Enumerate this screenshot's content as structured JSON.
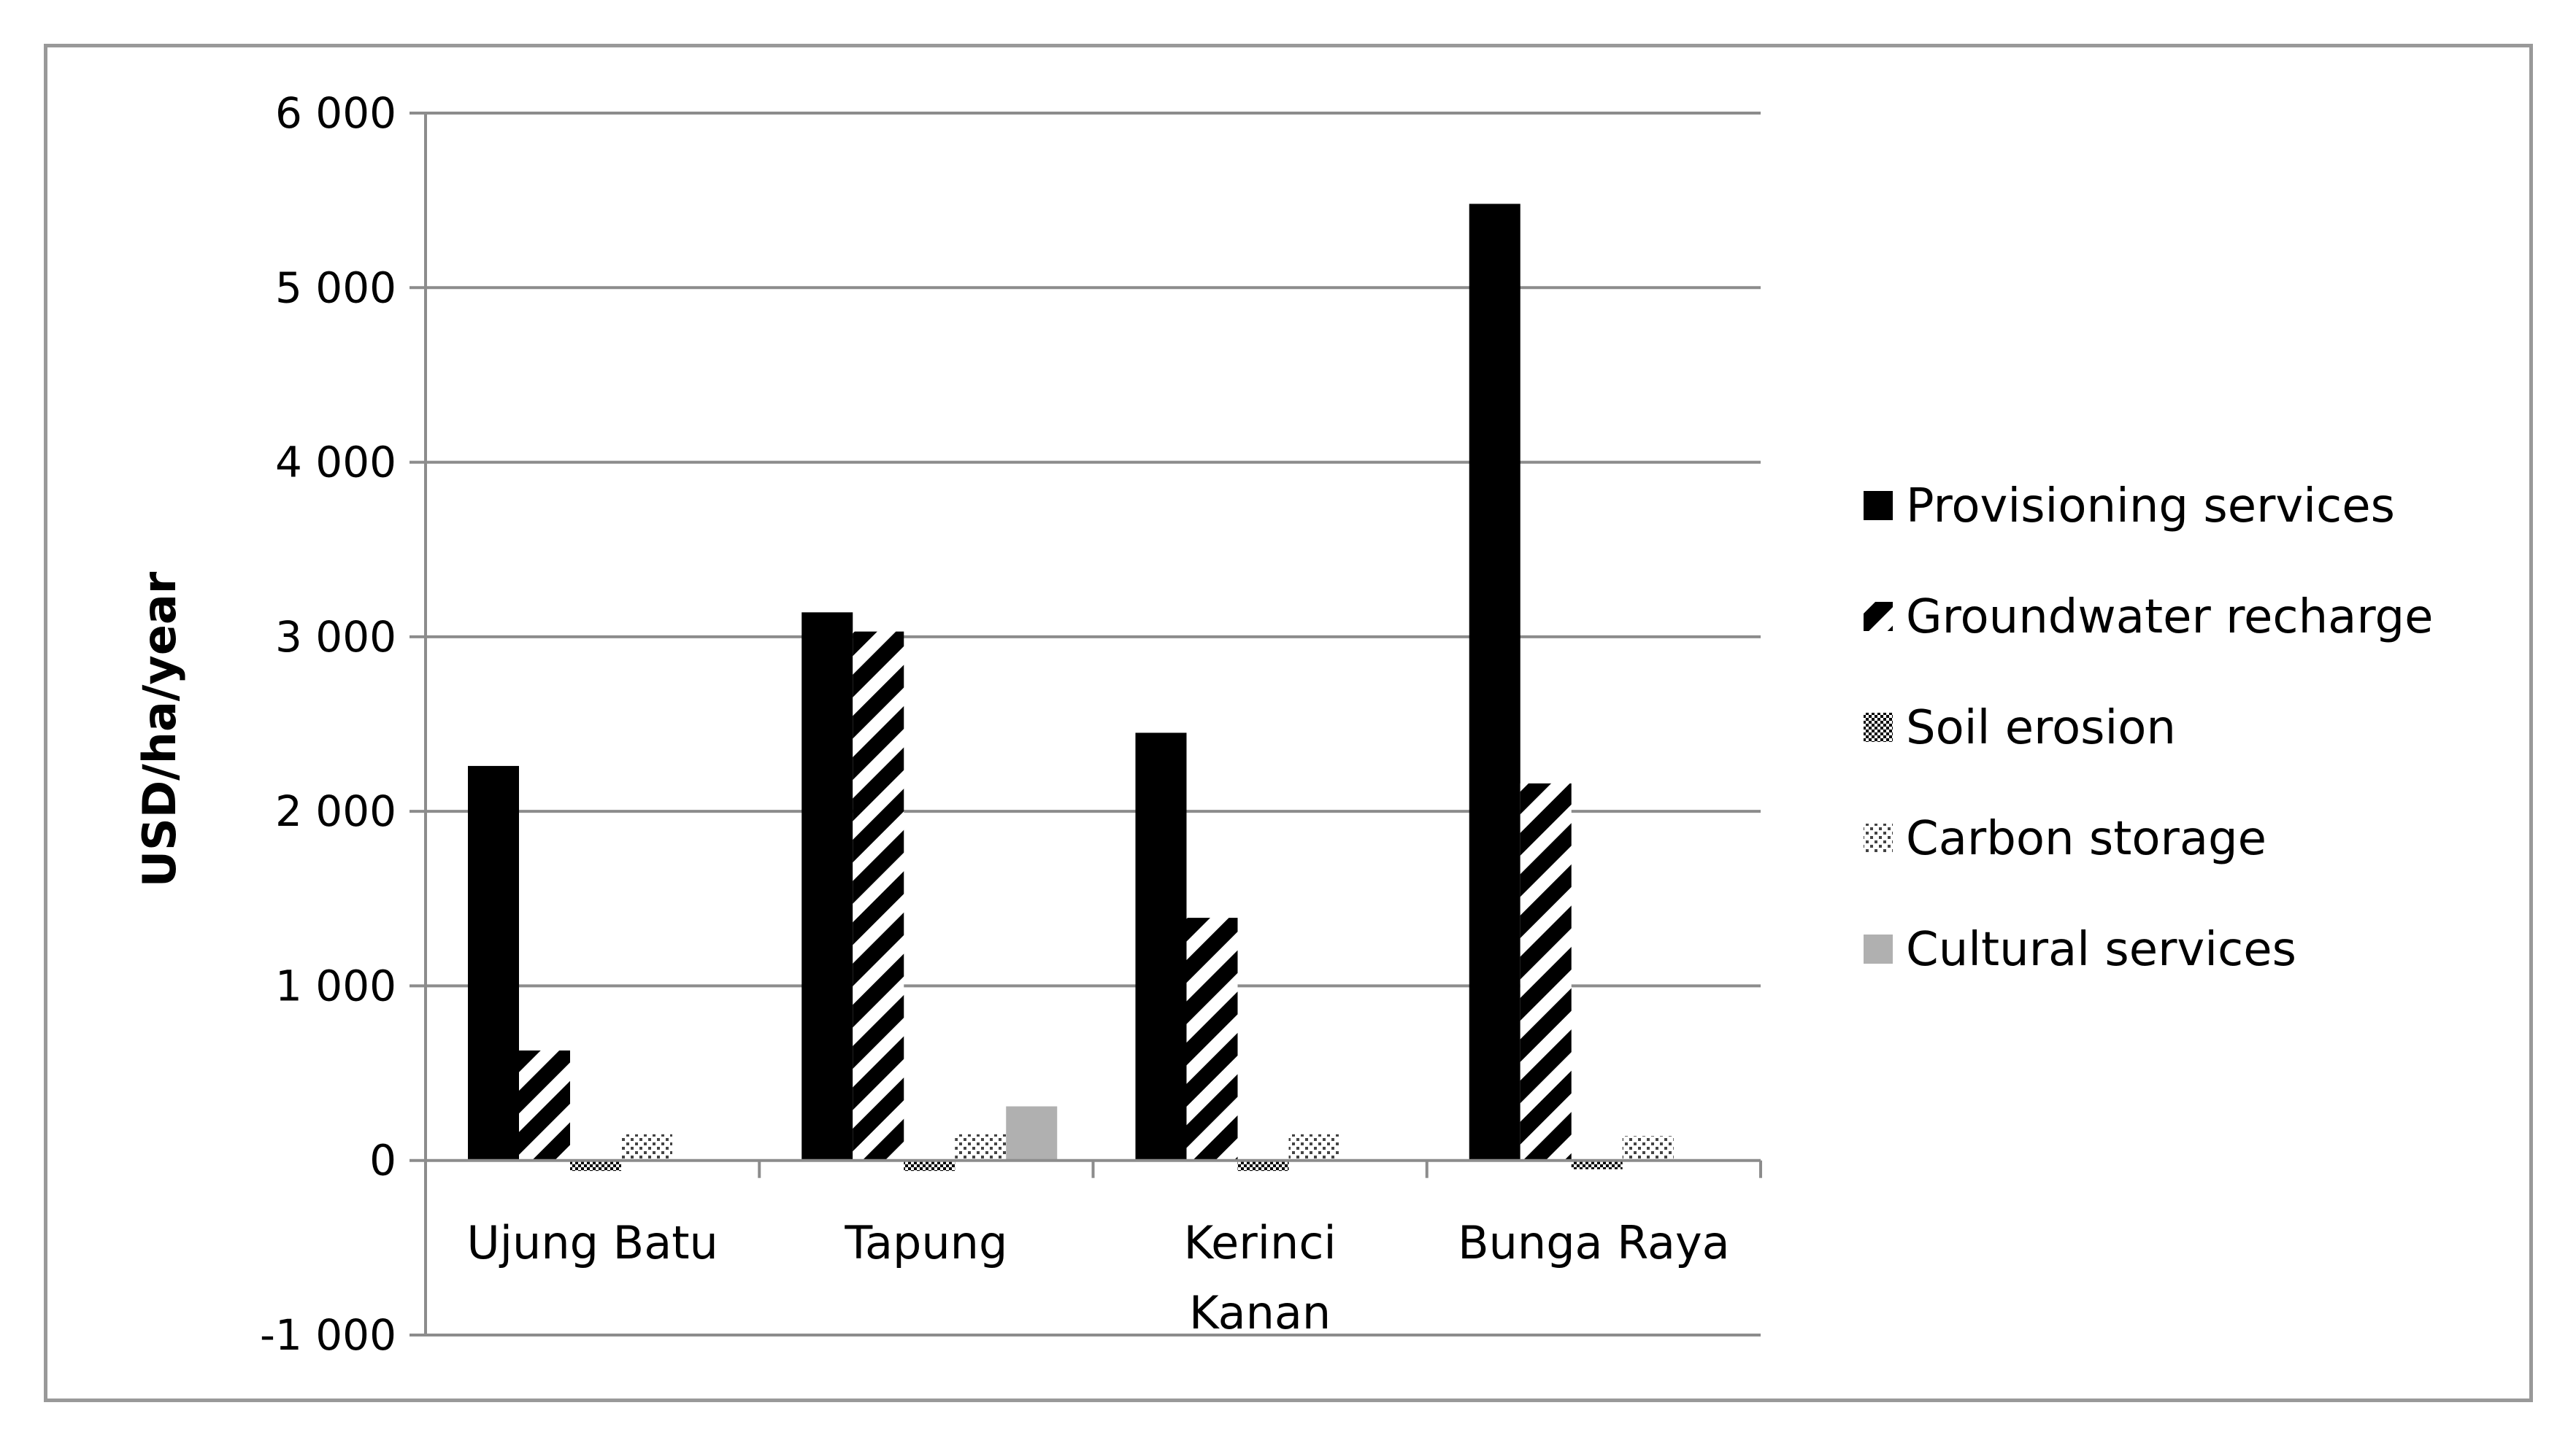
{
  "chart_data": {
    "type": "bar",
    "title": "",
    "xlabel": "",
    "ylabel": "USD/ha/year",
    "ylim": [
      -1000,
      6000
    ],
    "yticks": [
      -1000,
      0,
      1000,
      2000,
      3000,
      4000,
      5000,
      6000
    ],
    "ytick_labels": [
      "-1 000",
      "0",
      "1 000",
      "2 000",
      "3 000",
      "4 000",
      "5 000",
      "6 000"
    ],
    "grid": true,
    "legend_position": "right",
    "categories": [
      [
        "Ujung Batu"
      ],
      [
        "Tapung"
      ],
      [
        "Kerinci",
        "Kanan"
      ],
      [
        "Bunga Raya"
      ]
    ],
    "series": [
      {
        "name": "Provisioning services",
        "pattern": "solid-black",
        "color": "#000000",
        "values": [
          2260,
          3140,
          2450,
          5480
        ]
      },
      {
        "name": "Groundwater recharge",
        "pattern": "diagonal-stripes",
        "color": "#000000",
        "values": [
          630,
          3030,
          1390,
          2160
        ]
      },
      {
        "name": "Soil erosion",
        "pattern": "checker",
        "color": "#000000",
        "values": [
          -60,
          -60,
          -60,
          -50
        ]
      },
      {
        "name": "Carbon storage",
        "pattern": "dots",
        "color": "#555555",
        "values": [
          150,
          150,
          150,
          140
        ]
      },
      {
        "name": "Cultural services",
        "pattern": "solid-gray",
        "color": "#b0b0b0",
        "values": [
          0,
          310,
          0,
          0
        ]
      }
    ]
  }
}
